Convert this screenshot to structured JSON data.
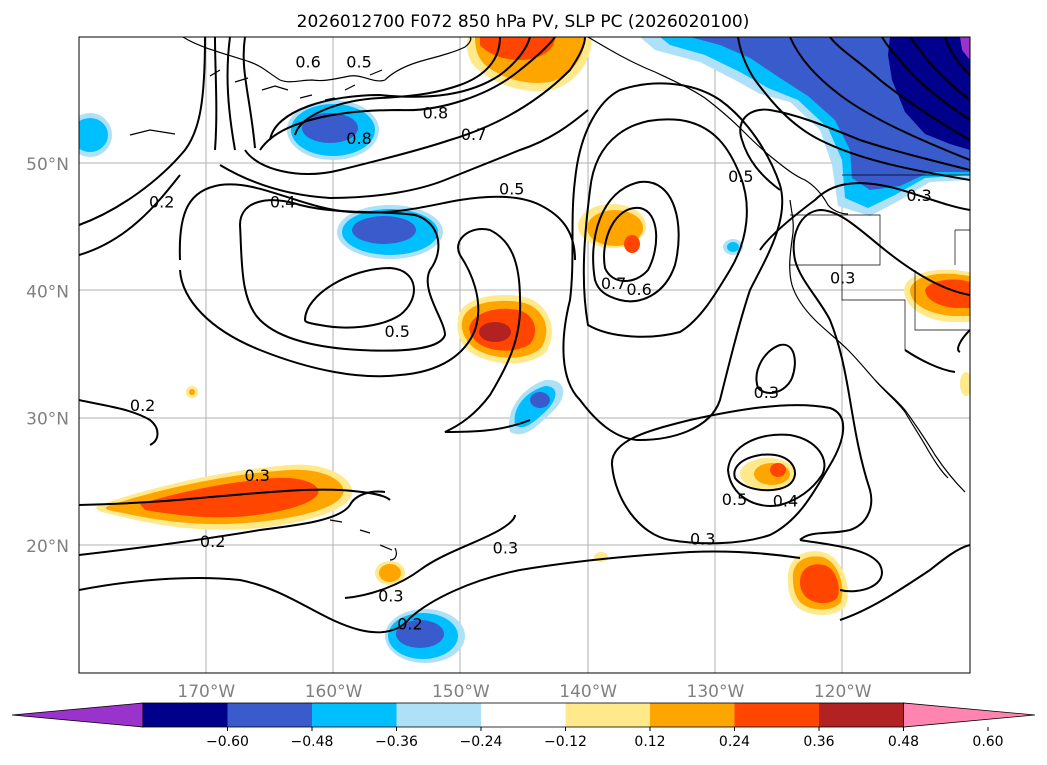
{
  "title": "2026012700 F072 850 hPa PV, SLP PC (2026020100)",
  "map": {
    "lon_range": [
      -180,
      -110
    ],
    "lat_range": [
      10,
      60
    ],
    "lat_ticks": [
      {
        "value": 20,
        "label": "20°N"
      },
      {
        "value": 30,
        "label": "30°N"
      },
      {
        "value": 40,
        "label": "40°N"
      },
      {
        "value": 50,
        "label": "50°N"
      }
    ],
    "lon_ticks": [
      {
        "value": -170,
        "label": "170°W"
      },
      {
        "value": -160,
        "label": "160°W"
      },
      {
        "value": -150,
        "label": "150°W"
      },
      {
        "value": -140,
        "label": "140°W"
      },
      {
        "value": -130,
        "label": "130°W"
      },
      {
        "value": -120,
        "label": "120°W"
      }
    ],
    "contour_labels": [
      {
        "text": "0.8",
        "lon": -158.0,
        "lat": 52.0
      },
      {
        "text": "0.8",
        "lon": -152.0,
        "lat": 54.0
      },
      {
        "text": "0.7",
        "lon": -149.0,
        "lat": 52.3
      },
      {
        "text": "0.6",
        "lon": -162.0,
        "lat": 58.0
      },
      {
        "text": "0.5",
        "lon": -158.0,
        "lat": 58.0
      },
      {
        "text": "0.5",
        "lon": -146.0,
        "lat": 48.0
      },
      {
        "text": "0.4",
        "lon": -164.0,
        "lat": 47.0
      },
      {
        "text": "0.2",
        "lon": -173.5,
        "lat": 47.0
      },
      {
        "text": "0.5",
        "lon": -155.0,
        "lat": 36.8
      },
      {
        "text": "0.7",
        "lon": -138.0,
        "lat": 40.6
      },
      {
        "text": "0.6",
        "lon": -136.0,
        "lat": 40.1
      },
      {
        "text": "0.5",
        "lon": -128.0,
        "lat": 49.0
      },
      {
        "text": "0.3",
        "lon": -126.0,
        "lat": 32.0
      },
      {
        "text": "0.3",
        "lon": -114.0,
        "lat": 47.5
      },
      {
        "text": "0.3",
        "lon": -120.0,
        "lat": 41.0
      },
      {
        "text": "0.2",
        "lon": -175.0,
        "lat": 31.0
      },
      {
        "text": "0.3",
        "lon": -166.0,
        "lat": 25.5
      },
      {
        "text": "0.2",
        "lon": -169.5,
        "lat": 20.3
      },
      {
        "text": "0.3",
        "lon": -146.5,
        "lat": 19.8
      },
      {
        "text": "0.3",
        "lon": -155.5,
        "lat": 16.0
      },
      {
        "text": "0.2",
        "lon": -154.0,
        "lat": 13.8
      },
      {
        "text": "0.3",
        "lon": -131.0,
        "lat": 20.5
      },
      {
        "text": "0.5",
        "lon": -128.5,
        "lat": 23.6
      },
      {
        "text": "0.4",
        "lon": -124.5,
        "lat": 23.5
      }
    ]
  },
  "colorbar": {
    "ticks": [
      "−0.60",
      "−0.48",
      "−0.36",
      "−0.24",
      "−0.12",
      "0.12",
      "0.24",
      "0.36",
      "0.48",
      "0.60"
    ],
    "colors": [
      "#9933cc",
      "#00008b",
      "#3a5bcc",
      "#00bfff",
      "#aee0f8",
      "#ffffff",
      "#ffe98a",
      "#ffa500",
      "#ff4500",
      "#b22222",
      "#ff85b0"
    ]
  }
}
